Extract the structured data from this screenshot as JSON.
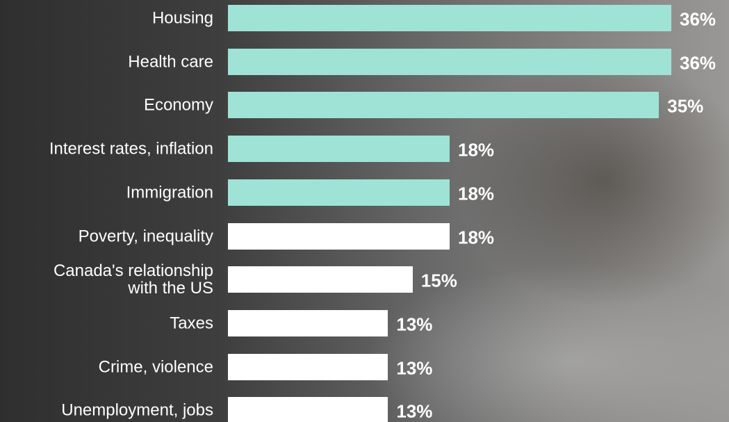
{
  "chart_data": {
    "type": "bar",
    "orientation": "horizontal",
    "categories": [
      "Housing",
      "Health care",
      "Economy",
      "Interest rates, inflation",
      "Immigration",
      "Poverty, inequality",
      "Canada's relationship\nwith the US",
      "Taxes",
      "Crime, violence",
      "Unemployment, jobs"
    ],
    "values": [
      36,
      36,
      35,
      18,
      18,
      18,
      15,
      13,
      13,
      13
    ],
    "value_labels": [
      "36%",
      "36%",
      "35%",
      "18%",
      "18%",
      "18%",
      "15%",
      "13%",
      "13%",
      "13%"
    ],
    "colors": [
      "#9fe3d6",
      "#9fe3d6",
      "#9fe3d6",
      "#9fe3d6",
      "#9fe3d6",
      "#ffffff",
      "#ffffff",
      "#ffffff",
      "#ffffff",
      "#ffffff"
    ]
  }
}
